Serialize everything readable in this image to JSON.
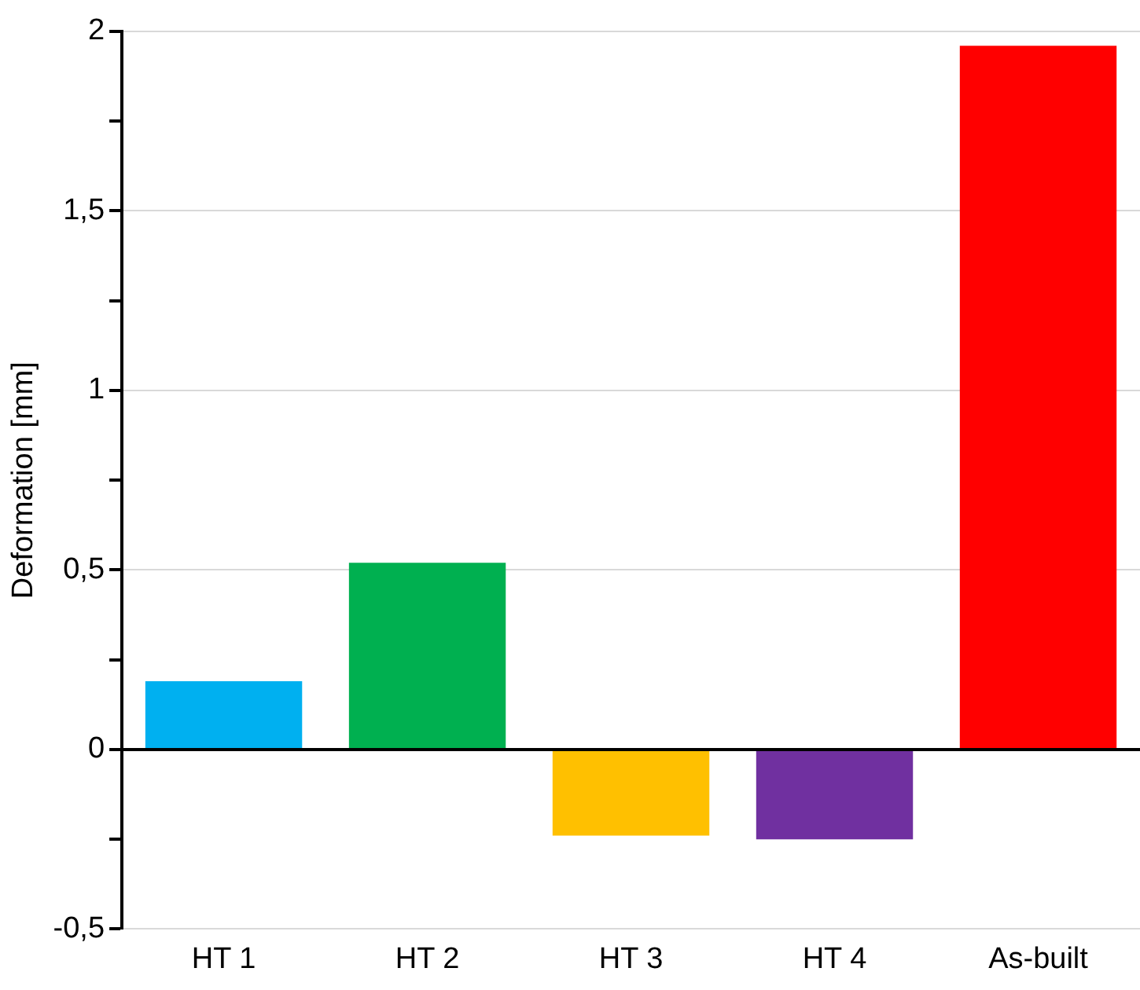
{
  "chart_data": {
    "type": "bar",
    "ylabel": "Deformation [mm]",
    "categories": [
      "HT 1",
      "HT 2",
      "HT 3",
      "HT 4",
      "As-built"
    ],
    "values": [
      0.19,
      0.52,
      -0.24,
      -0.25,
      1.96
    ],
    "colors": [
      "#00b0f0",
      "#00b050",
      "#ffc000",
      "#7030a0",
      "#ff0000"
    ],
    "ylim": [
      -0.5,
      2
    ],
    "yticks": [
      {
        "value": -0.5,
        "label": "-0,5"
      },
      {
        "value": -0.25,
        "label": null
      },
      0,
      {
        "value": 0.25,
        "label": null
      },
      {
        "value": 0.5,
        "label": "0,5"
      },
      {
        "value": 0.75,
        "label": null
      },
      1,
      {
        "value": 1.25,
        "label": null
      },
      {
        "value": 1.5,
        "label": "1,5"
      },
      {
        "value": 1.75,
        "label": null
      },
      2
    ],
    "grid": "y",
    "legend": false
  }
}
